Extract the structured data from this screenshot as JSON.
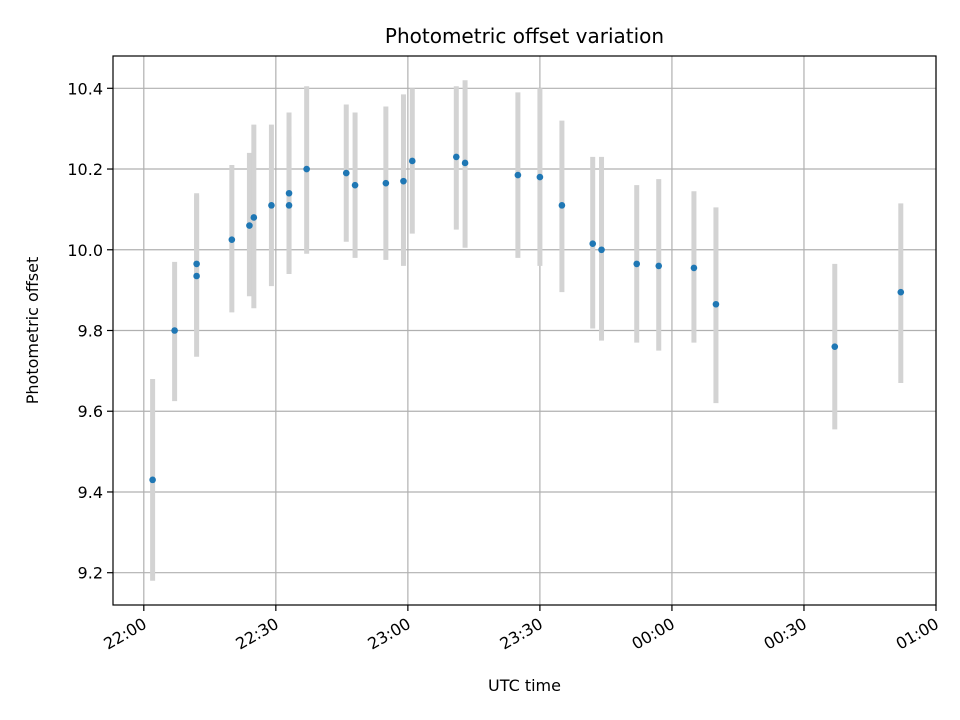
{
  "chart_data": {
    "type": "scatter",
    "title": "Photometric offset variation",
    "xlabel": "UTC time",
    "ylabel": "Photometric offset",
    "x_ticks": [
      "22:00",
      "22:30",
      "23:00",
      "23:30",
      "00:00",
      "00:30",
      "01:00"
    ],
    "y_ticks": [
      "9.2",
      "9.4",
      "9.6",
      "9.8",
      "10.0",
      "10.2",
      "10.4"
    ],
    "xlim": [
      "21:53",
      "01:00"
    ],
    "ylim": [
      9.12,
      10.48
    ],
    "grid": true,
    "colors": {
      "point": "#1f77b4",
      "error_bar": "#d3d3d3",
      "grid": "#b0b0b0"
    },
    "points": [
      {
        "time": "22:02",
        "y": 9.43,
        "err_low": 9.18,
        "err_high": 9.68
      },
      {
        "time": "22:07",
        "y": 9.8,
        "err_low": 9.625,
        "err_high": 9.97
      },
      {
        "time": "22:12",
        "y": 9.935,
        "err_low": 9.735,
        "err_high": 10.135
      },
      {
        "time": "22:12",
        "y": 9.965,
        "err_low": 9.8,
        "err_high": 10.14
      },
      {
        "time": "22:20",
        "y": 10.025,
        "err_low": 9.845,
        "err_high": 10.21
      },
      {
        "time": "22:24",
        "y": 10.06,
        "err_low": 9.885,
        "err_high": 10.24
      },
      {
        "time": "22:25",
        "y": 10.08,
        "err_low": 9.855,
        "err_high": 10.31
      },
      {
        "time": "22:29",
        "y": 10.11,
        "err_low": 9.91,
        "err_high": 10.31
      },
      {
        "time": "22:33",
        "y": 10.11,
        "err_low": 9.94,
        "err_high": 10.28
      },
      {
        "time": "22:33",
        "y": 10.14,
        "err_low": 9.945,
        "err_high": 10.34
      },
      {
        "time": "22:37",
        "y": 10.2,
        "err_low": 9.99,
        "err_high": 10.405
      },
      {
        "time": "22:46",
        "y": 10.19,
        "err_low": 10.02,
        "err_high": 10.36
      },
      {
        "time": "22:48",
        "y": 10.16,
        "err_low": 9.98,
        "err_high": 10.34
      },
      {
        "time": "22:55",
        "y": 10.165,
        "err_low": 9.975,
        "err_high": 10.355
      },
      {
        "time": "22:59",
        "y": 10.17,
        "err_low": 9.96,
        "err_high": 10.385
      },
      {
        "time": "23:01",
        "y": 10.22,
        "err_low": 10.04,
        "err_high": 10.4
      },
      {
        "time": "23:11",
        "y": 10.23,
        "err_low": 10.05,
        "err_high": 10.405
      },
      {
        "time": "23:13",
        "y": 10.215,
        "err_low": 10.005,
        "err_high": 10.42
      },
      {
        "time": "23:25",
        "y": 10.185,
        "err_low": 9.98,
        "err_high": 10.39
      },
      {
        "time": "23:30",
        "y": 10.18,
        "err_low": 9.96,
        "err_high": 10.4
      },
      {
        "time": "23:35",
        "y": 10.11,
        "err_low": 9.895,
        "err_high": 10.32
      },
      {
        "time": "23:42",
        "y": 10.015,
        "err_low": 9.805,
        "err_high": 10.23
      },
      {
        "time": "23:44",
        "y": 10.0,
        "err_low": 9.775,
        "err_high": 10.23
      },
      {
        "time": "23:52",
        "y": 9.965,
        "err_low": 9.77,
        "err_high": 10.16
      },
      {
        "time": "23:57",
        "y": 9.96,
        "err_low": 9.75,
        "err_high": 10.175
      },
      {
        "time": "00:05",
        "y": 9.955,
        "err_low": 9.77,
        "err_high": 10.145
      },
      {
        "time": "00:10",
        "y": 9.865,
        "err_low": 9.62,
        "err_high": 10.105
      },
      {
        "time": "00:37",
        "y": 9.76,
        "err_low": 9.555,
        "err_high": 9.965
      },
      {
        "time": "00:52",
        "y": 9.895,
        "err_low": 9.67,
        "err_high": 10.115
      }
    ]
  }
}
